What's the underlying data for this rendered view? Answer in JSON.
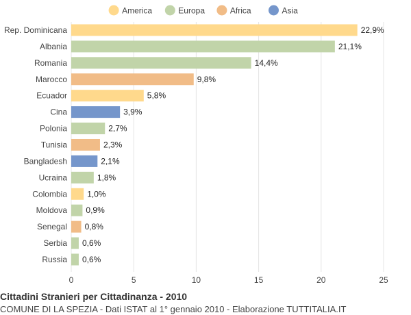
{
  "chart_data": {
    "type": "bar",
    "orientation": "horizontal",
    "title": "Cittadini Stranieri per Cittadinanza - 2010",
    "subtitle": "COMUNE DI LA SPEZIA - Dati ISTAT al 1° gennaio 2010 - Elaborazione TUTTITALIA.IT",
    "xlim": [
      0,
      25
    ],
    "xticks": [
      0,
      5,
      10,
      15,
      20,
      25
    ],
    "grid": true,
    "legend_position": "top",
    "legend": [
      {
        "name": "America",
        "color": "#FFD98C"
      },
      {
        "name": "Europa",
        "color": "#C1D4A9"
      },
      {
        "name": "Africa",
        "color": "#F1BC87"
      },
      {
        "name": "Asia",
        "color": "#7596CB"
      }
    ],
    "categories": [
      "Rep. Dominicana",
      "Albania",
      "Romania",
      "Marocco",
      "Ecuador",
      "Cina",
      "Polonia",
      "Tunisia",
      "Bangladesh",
      "Ucraina",
      "Colombia",
      "Moldova",
      "Senegal",
      "Serbia",
      "Russia"
    ],
    "values": [
      22.9,
      21.1,
      14.4,
      9.8,
      5.8,
      3.9,
      2.7,
      2.3,
      2.1,
      1.8,
      1.0,
      0.9,
      0.8,
      0.6,
      0.6
    ],
    "value_labels": [
      "22,9%",
      "21,1%",
      "14,4%",
      "9,8%",
      "5,8%",
      "3,9%",
      "2,7%",
      "2,3%",
      "2,1%",
      "1,8%",
      "1,0%",
      "0,9%",
      "0,8%",
      "0,6%",
      "0,6%"
    ],
    "groups": [
      "America",
      "Europa",
      "Europa",
      "Africa",
      "America",
      "Asia",
      "Europa",
      "Africa",
      "Asia",
      "Europa",
      "America",
      "Europa",
      "Africa",
      "Europa",
      "Europa"
    ]
  }
}
